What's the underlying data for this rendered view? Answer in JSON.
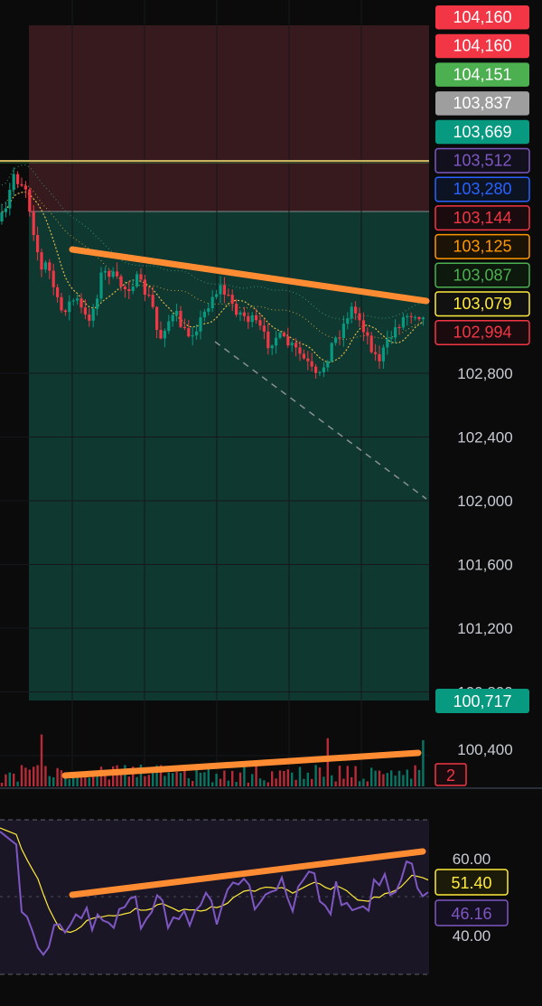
{
  "chart_data": {
    "type": "candlestick",
    "price_axis": {
      "ticks": [
        102800,
        102400,
        102000,
        101600,
        101200,
        100800,
        100400
      ],
      "tick_labels": [
        "102,800",
        "102,400",
        "102,000",
        "101,600",
        "101,200",
        "100,800",
        "100,400"
      ]
    },
    "zones": [
      {
        "kind": "stop-loss",
        "from": 103669,
        "to": 104160,
        "color": "#3a1b1f"
      },
      {
        "kind": "take-profit",
        "from": 100717,
        "to": 103669,
        "color": "#0f3b33"
      }
    ],
    "horizontal_lines": [
      {
        "price": 103837,
        "color": "#c9b15e"
      }
    ],
    "price_labels": [
      {
        "text": "104,160",
        "bg": "#f23645",
        "fg": "#ffffff",
        "outlined": false
      },
      {
        "text": "104,160",
        "bg": "#f23645",
        "fg": "#ffffff",
        "outlined": false
      },
      {
        "text": "104,151",
        "bg": "#4caf50",
        "fg": "#ffffff",
        "outlined": false
      },
      {
        "text": "103,837",
        "bg": "#9e9e9e",
        "fg": "#ffffff",
        "outlined": false
      },
      {
        "text": "103,669",
        "bg": "#089981",
        "fg": "#ffffff",
        "outlined": false
      },
      {
        "text": "103,512",
        "bg": "#12101c",
        "fg": "#7e57c2",
        "outlined": true
      },
      {
        "text": "103,280",
        "bg": "#0c1424",
        "fg": "#2962ff",
        "outlined": true
      },
      {
        "text": "103,144",
        "bg": "#1a0c0e",
        "fg": "#f23645",
        "outlined": true
      },
      {
        "text": "103,125",
        "bg": "#1c1307",
        "fg": "#ff9800",
        "outlined": true
      },
      {
        "text": "103,087",
        "bg": "#0e190e",
        "fg": "#4caf50",
        "outlined": true
      },
      {
        "text": "103,079",
        "bg": "#111111",
        "fg": "#ffeb3b",
        "outlined": true
      },
      {
        "text": "102,994",
        "bg": "#1a0c0e",
        "fg": "#f23645",
        "outlined": true
      }
    ],
    "target_label": {
      "text": "100,717",
      "bg": "#089981",
      "fg": "#ffffff"
    },
    "trendlines": [
      {
        "pane": "price",
        "from": [
          80,
          276
        ],
        "to": [
          472,
          333
        ],
        "color": "#ff8c32"
      },
      {
        "pane": "volume",
        "from": [
          72,
          858
        ],
        "to": [
          463,
          833
        ],
        "color": "#ff8c32"
      },
      {
        "pane": "rsi",
        "from": [
          80,
          990
        ],
        "to": [
          468,
          942
        ],
        "color": "#ff8c32"
      }
    ],
    "projection_line": {
      "from": [
        238,
        378
      ],
      "to": [
        472,
        552
      ],
      "color": "#8a8f98"
    },
    "volume": {
      "count_label": "2",
      "color": "#f23645"
    },
    "rsi": {
      "levels": [
        60,
        40
      ],
      "level_labels": [
        "60.00",
        "40.00"
      ],
      "rsi_value": "46.16",
      "rsi_color": "#7e57c2",
      "ma_value": "51.40",
      "ma_color": "#ffeb3b",
      "band_color": "#1a1626"
    },
    "colors": {
      "up": "#089981",
      "down": "#f23645",
      "background": "#0b0b0c"
    }
  }
}
